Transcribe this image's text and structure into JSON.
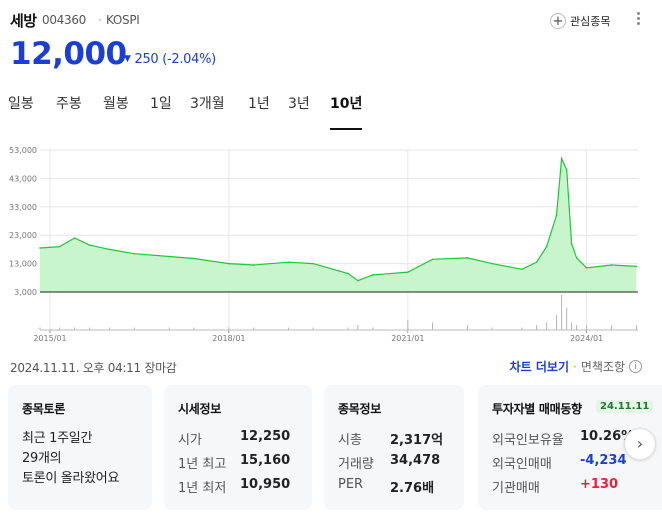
{
  "stock": {
    "name": "세방",
    "code": "004360",
    "separator": "·",
    "market": "KOSPI",
    "price": "12,000",
    "change_arrow": "▼",
    "change": "250 (-2.04%)",
    "watchlist_label": "관심종목"
  },
  "tabs": [
    "일봉",
    "주봉",
    "월봉",
    "1일",
    "3개월",
    "1년",
    "3년",
    "10년"
  ],
  "active_tab": "10년",
  "chart_data": {
    "type": "area",
    "y_ticks": [
      "53,000",
      "43,000",
      "33,000",
      "23,000",
      "13,000",
      "3,000"
    ],
    "ylim": [
      3000,
      53000
    ],
    "x_ticks": [
      "2015/01",
      "2018/01",
      "2021/01",
      "2024/01"
    ],
    "grid": true,
    "x": [
      "2014-11",
      "2015-03",
      "2015-06",
      "2015-09",
      "2016-01",
      "2016-06",
      "2017-01",
      "2017-06",
      "2018-01",
      "2018-06",
      "2019-01",
      "2019-06",
      "2020-01",
      "2020-03",
      "2020-06",
      "2021-01",
      "2021-06",
      "2022-01",
      "2022-06",
      "2022-12",
      "2023-03",
      "2023-05",
      "2023-07",
      "2023-08",
      "2023-09",
      "2023-10",
      "2023-11",
      "2024-01",
      "2024-06",
      "2024-11"
    ],
    "values": [
      18500,
      19000,
      22000,
      19500,
      18000,
      16500,
      15500,
      14800,
      13000,
      12500,
      13500,
      13000,
      9500,
      7000,
      9000,
      10000,
      14500,
      15000,
      13000,
      11000,
      13500,
      19000,
      30000,
      50000,
      46000,
      20000,
      15000,
      11500,
      12500,
      12000
    ],
    "volume": [
      1,
      1,
      1,
      1,
      1,
      1,
      1,
      1,
      1,
      1,
      1,
      1,
      1,
      2,
      1,
      4,
      3,
      2,
      1,
      1,
      2,
      3,
      6,
      14,
      9,
      3,
      2,
      2,
      2,
      2
    ]
  },
  "timestamp": "2024.11.11. 오후 04:11 장마감",
  "links": {
    "chart_more": "차트 더보기",
    "separator": "·",
    "disclaimer": "면책조항",
    "info_icon": "i"
  },
  "cards": {
    "forum": {
      "title": "종목토론",
      "line1": "최근 1주일간",
      "line2": "29개의",
      "line3": "토론이 올라왔어요"
    },
    "quote": {
      "title": "시세정보",
      "rows": [
        {
          "k": "시가",
          "v": "12,250"
        },
        {
          "k": "1년 최고",
          "v": "15,160"
        },
        {
          "k": "1년 최저",
          "v": "10,950"
        }
      ]
    },
    "info": {
      "title": "종목정보",
      "rows": [
        {
          "k": "시총",
          "v": "2,317억"
        },
        {
          "k": "거래량",
          "v": "34,478"
        },
        {
          "k": "PER",
          "v": "2.76배"
        }
      ]
    },
    "investor": {
      "title": "투자자별 매매동향",
      "date": "24.11.11",
      "rows": [
        {
          "k": "외국인보유율",
          "v": "10.26%"
        },
        {
          "k": "외국인매매",
          "v": "-4,234"
        },
        {
          "k": "기관매매",
          "v": "+130"
        }
      ]
    }
  },
  "colors": {
    "accent": "#1b3fd6",
    "up": "#e8213a",
    "down": "#1b3fd6",
    "line": "#22c539",
    "fill": "#c9f5cc"
  },
  "next_arrow": "›"
}
